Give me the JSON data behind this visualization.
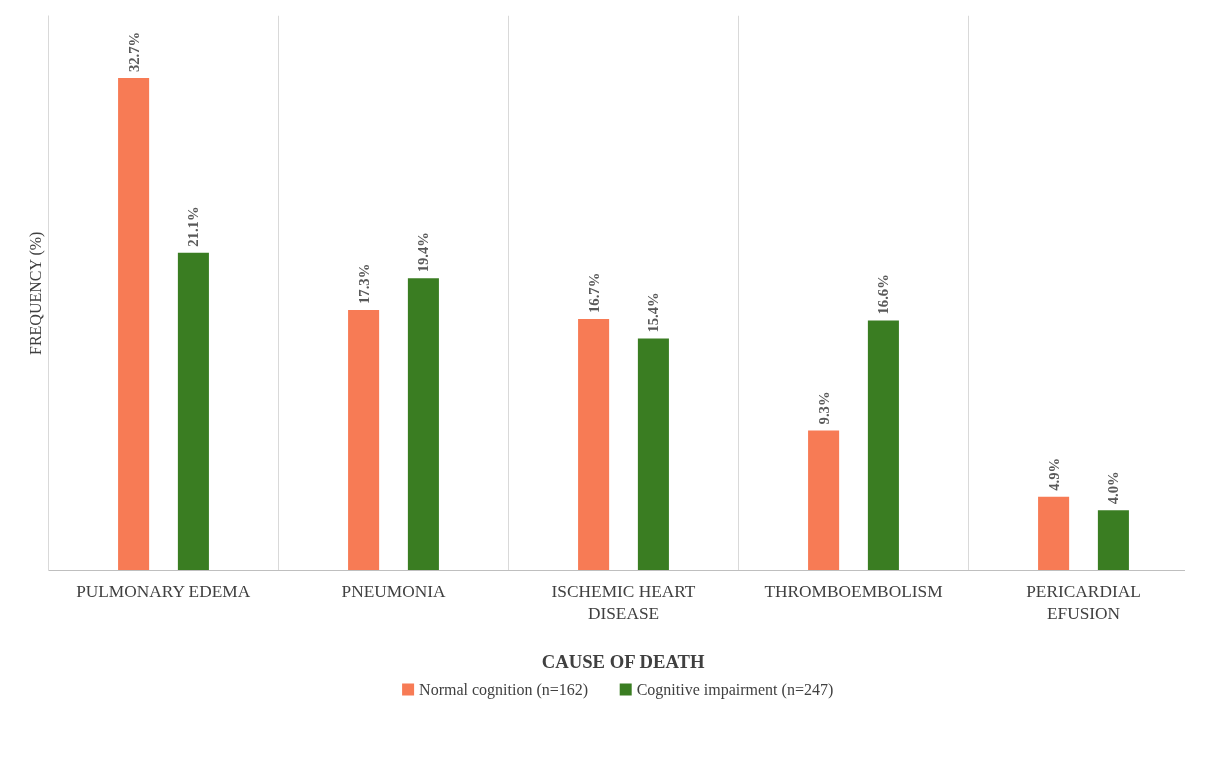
{
  "chart_data": {
    "type": "bar",
    "xlabel": "CAUSE OF DEATH",
    "ylabel": "FREQUENCY (%)",
    "categories": [
      "PULMONARY EDEMA",
      "PNEUMONIA",
      "ISCHEMIC HEART DISEASE",
      "THROMBOEMBOLISM",
      "PERICARDIAL EFUSION"
    ],
    "series": [
      {
        "name": "Normal cognition (n=162)",
        "color": "#f77b55",
        "values": [
          32.7,
          17.3,
          16.7,
          9.3,
          4.9
        ],
        "value_labels": [
          "32.7%",
          "17.3%",
          "16.7%",
          "9.3%",
          "4.9%"
        ]
      },
      {
        "name": "Cognitive impairment (n=247)",
        "color": "#3a7d22",
        "values": [
          21.1,
          19.4,
          15.4,
          16.6,
          4.0
        ],
        "value_labels": [
          "21.1%",
          "19.4%",
          "15.4%",
          "16.6%",
          "4.0%"
        ]
      }
    ],
    "tick_labels": "x",
    "grid": "x",
    "legend": "bottom"
  }
}
